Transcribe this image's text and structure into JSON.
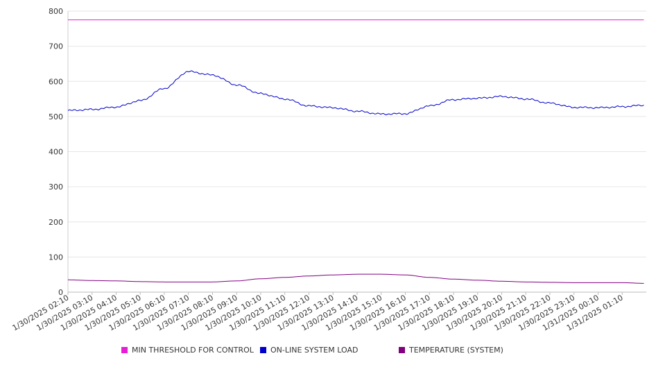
{
  "chart_data": {
    "type": "line",
    "title": "",
    "xlabel": "",
    "ylabel": "",
    "ylim": [
      0,
      800
    ],
    "yticks": [
      0,
      100,
      200,
      300,
      400,
      500,
      600,
      700,
      800
    ],
    "grid": true,
    "legend_position": "bottom",
    "x_tick_labels": [
      "1/30/2025 02:10",
      "1/30/2025 03:10",
      "1/30/2025 04:10",
      "1/30/2025 05:10",
      "1/30/2025 06:10",
      "1/30/2025 07:10",
      "1/30/2025 08:10",
      "1/30/2025 09:10",
      "1/30/2025 10:10",
      "1/30/2025 11:10",
      "1/30/2025 12:10",
      "1/30/2025 13:10",
      "1/30/2025 14:10",
      "1/30/2025 15:10",
      "1/30/2025 16:10",
      "1/30/2025 17:10",
      "1/30/2025 18:10",
      "1/30/2025 19:10",
      "1/30/2025 20:10",
      "1/30/2025 21:10",
      "1/30/2025 22:10",
      "1/30/2025 23:10",
      "1/31/2025 00:10",
      "1/31/2025 01:10"
    ],
    "x_hours": [
      0,
      1,
      2,
      3,
      4,
      5,
      6,
      7,
      8,
      9,
      10,
      11,
      12,
      13,
      14,
      15,
      16,
      17,
      18,
      19,
      20,
      21,
      22,
      23,
      23.9
    ],
    "series": [
      {
        "name": "MIN THRESHOLD FOR CONTROL",
        "color": "#e81ed6",
        "values": [
          775,
          775,
          775,
          775,
          775,
          775,
          775,
          775,
          775,
          775,
          775,
          775,
          775,
          775,
          775,
          775,
          775,
          775,
          775,
          775,
          775,
          775,
          775,
          775,
          775
        ]
      },
      {
        "name": "ON-LINE SYSTEM LOAD",
        "color": "#0000cc",
        "values": [
          517,
          520,
          527,
          545,
          580,
          628,
          618,
          590,
          565,
          550,
          530,
          525,
          515,
          507,
          508,
          530,
          548,
          552,
          557,
          550,
          538,
          526,
          525,
          528,
          532
        ]
      },
      {
        "name": "TEMPERATURE (SYSTEM)",
        "color": "#800080",
        "values": [
          35,
          33,
          32,
          30,
          29,
          29,
          29,
          32,
          38,
          42,
          46,
          49,
          51,
          51,
          49,
          42,
          37,
          34,
          31,
          29,
          28,
          27,
          27,
          27,
          25
        ]
      }
    ]
  }
}
